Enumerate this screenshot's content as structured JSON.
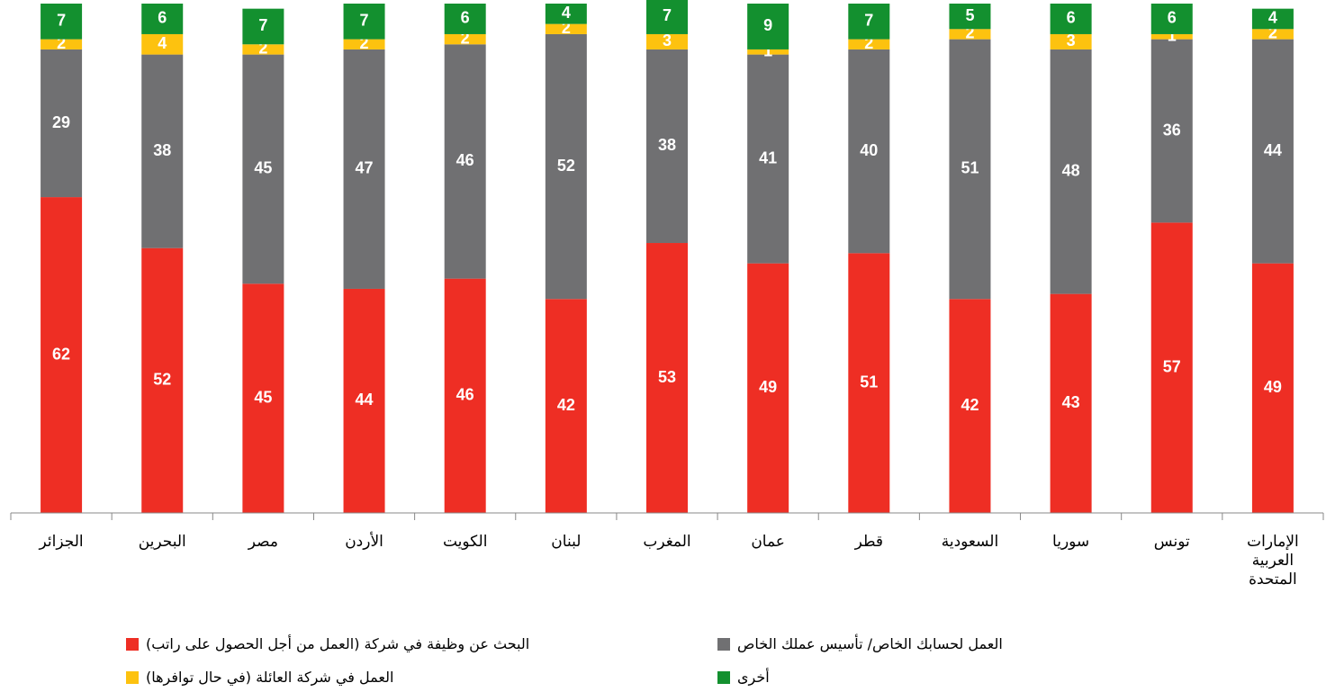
{
  "chart_data": {
    "type": "stacked_bar",
    "categories": [
      "الجزائر",
      "البحرين",
      "مصر",
      "الأردن",
      "الكويت",
      "لبنان",
      "المغرب",
      "عمان",
      "قطر",
      "السعودية",
      "سوريا",
      "تونس",
      "الإمارات العربية المتحدة"
    ],
    "series": [
      {
        "name": "البحث عن وظيفة في شركة (العمل من أجل الحصول على راتب)",
        "color": "#ee2e24",
        "values": [
          62,
          52,
          45,
          44,
          46,
          42,
          53,
          49,
          51,
          42,
          43,
          57,
          49
        ]
      },
      {
        "name": "العمل لحسابك الخاص/ تأسيس عملك الخاص",
        "color": "#707072",
        "values": [
          29,
          38,
          45,
          47,
          46,
          52,
          38,
          41,
          40,
          51,
          48,
          36,
          44
        ]
      },
      {
        "name": "العمل في شركة العائلة (في حال توافرها)",
        "color": "#fdc20f",
        "values": [
          2,
          4,
          2,
          2,
          2,
          2,
          3,
          1,
          2,
          2,
          3,
          1,
          2
        ]
      },
      {
        "name": "أخرى",
        "color": "#13902f",
        "values": [
          7,
          6,
          7,
          7,
          6,
          4,
          7,
          9,
          7,
          5,
          6,
          6,
          4
        ]
      }
    ],
    "ylim": [
      0,
      100
    ]
  }
}
